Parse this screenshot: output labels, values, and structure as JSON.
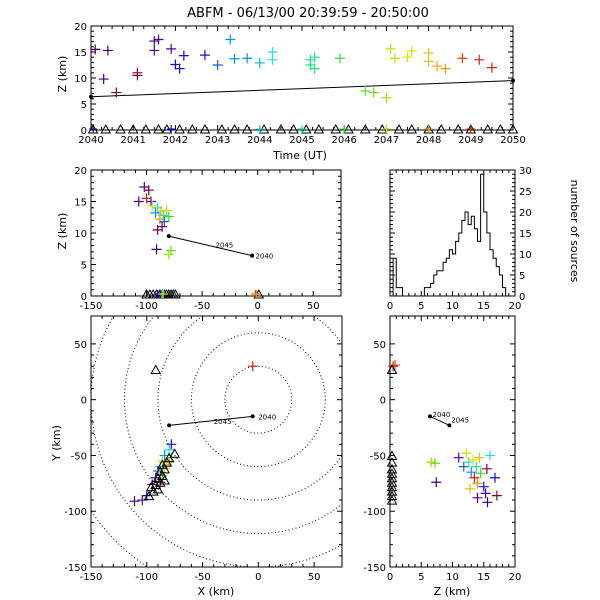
{
  "title": "ABFM - 06/13/00 20:39:59 - 20:50:00",
  "chart_data": [
    {
      "panel": "time-height",
      "type": "scatter",
      "xlabel": "Time (UT)",
      "ylabel": "Z (km)",
      "xlim": [
        2040,
        2050
      ],
      "ylim": [
        0,
        20
      ],
      "xticks": [
        2040,
        2041,
        2042,
        2043,
        2044,
        2045,
        2046,
        2047,
        2048,
        2049,
        2050
      ],
      "yticks": [
        0,
        5,
        10,
        15,
        20
      ],
      "track": [
        [
          2040,
          6.4
        ],
        [
          2050,
          9.5
        ]
      ],
      "points": [
        {
          "x": 2040.1,
          "y": 15.5,
          "c": "#400080"
        },
        {
          "x": 2040.4,
          "y": 15.3,
          "c": "#400080"
        },
        {
          "x": 2040.3,
          "y": 9.8,
          "c": "#400080"
        },
        {
          "x": 2040.6,
          "y": 7.2,
          "c": "#800040"
        },
        {
          "x": 2041.1,
          "y": 11.0,
          "c": "#800040"
        },
        {
          "x": 2041.1,
          "y": 10.5,
          "c": "#800040"
        },
        {
          "x": 2041.5,
          "y": 17.1,
          "c": "#5000a0"
        },
        {
          "x": 2041.6,
          "y": 17.4,
          "c": "#5000a0"
        },
        {
          "x": 2041.5,
          "y": 15.3,
          "c": "#5000a0"
        },
        {
          "x": 2041.9,
          "y": 15.6,
          "c": "#5000a0"
        },
        {
          "x": 2042.0,
          "y": 12.6,
          "c": "#1010e0"
        },
        {
          "x": 2042.1,
          "y": 11.8,
          "c": "#1010e0"
        },
        {
          "x": 2042.2,
          "y": 14.3,
          "c": "#1010e0"
        },
        {
          "x": 2042.7,
          "y": 14.4,
          "c": "#1010e0"
        },
        {
          "x": 2043.0,
          "y": 12.5,
          "c": "#1060e0"
        },
        {
          "x": 2043.3,
          "y": 17.4,
          "c": "#0090ff"
        },
        {
          "x": 2043.4,
          "y": 13.7,
          "c": "#0090ff"
        },
        {
          "x": 2043.7,
          "y": 13.8,
          "c": "#0090ff"
        },
        {
          "x": 2044.0,
          "y": 12.9,
          "c": "#00c0e0"
        },
        {
          "x": 2044.3,
          "y": 15.0,
          "c": "#20e0e0"
        },
        {
          "x": 2044.3,
          "y": 13.5,
          "c": "#20e0e0"
        },
        {
          "x": 2045.2,
          "y": 13.5,
          "c": "#20e0a0"
        },
        {
          "x": 2045.3,
          "y": 14.0,
          "c": "#20e0a0"
        },
        {
          "x": 2045.2,
          "y": 12.5,
          "c": "#20e080"
        },
        {
          "x": 2045.3,
          "y": 11.8,
          "c": "#20e080"
        },
        {
          "x": 2045.9,
          "y": 13.8,
          "c": "#30e040"
        },
        {
          "x": 2046.5,
          "y": 7.5,
          "c": "#60e020"
        },
        {
          "x": 2046.7,
          "y": 7.2,
          "c": "#60e020"
        },
        {
          "x": 2047.0,
          "y": 6.2,
          "c": "#a0e000"
        },
        {
          "x": 2047.1,
          "y": 15.6,
          "c": "#c0e000"
        },
        {
          "x": 2047.2,
          "y": 13.8,
          "c": "#c0e000"
        },
        {
          "x": 2047.5,
          "y": 14.0,
          "c": "#e0e000"
        },
        {
          "x": 2047.6,
          "y": 15.2,
          "c": "#e0e000"
        },
        {
          "x": 2048.0,
          "y": 13.2,
          "c": "#e0c000"
        },
        {
          "x": 2048.0,
          "y": 14.8,
          "c": "#e0c000"
        },
        {
          "x": 2048.2,
          "y": 12.3,
          "c": "#ffa000"
        },
        {
          "x": 2048.4,
          "y": 11.8,
          "c": "#ff9000"
        },
        {
          "x": 2048.8,
          "y": 13.8,
          "c": "#e04000"
        },
        {
          "x": 2049.2,
          "y": 13.5,
          "c": "#d02010"
        },
        {
          "x": 2049.5,
          "y": 12.0,
          "c": "#d02010"
        }
      ],
      "ground": [
        {
          "x": 2040.05,
          "c": "#400080"
        },
        {
          "x": 2041.9,
          "c": "#1010e0"
        },
        {
          "x": 2044.0,
          "c": "#20e0e0"
        },
        {
          "x": 2045.0,
          "c": "#20e0a0"
        },
        {
          "x": 2046.0,
          "c": "#30e040"
        },
        {
          "x": 2047.0,
          "c": "#c0e000"
        },
        {
          "x": 2048.0,
          "c": "#ff9000"
        },
        {
          "x": 2049.0,
          "c": "#d02010"
        }
      ],
      "triangles_x": [
        2040.05,
        2040.35,
        2040.7,
        2041.0,
        2041.3,
        2041.6,
        2041.8,
        2042.1,
        2042.4,
        2042.7,
        2043.1,
        2043.4,
        2043.7,
        2044.1,
        2044.5,
        2044.8,
        2045.1,
        2045.4,
        2045.8,
        2046.1,
        2046.5,
        2046.9,
        2047.3,
        2047.6,
        2048.0,
        2048.3,
        2048.7,
        2049.0,
        2049.4,
        2049.7,
        2050.0
      ]
    },
    {
      "panel": "x-height",
      "type": "scatter",
      "ylabel": "Z (km)",
      "xlim": [
        -150,
        75
      ],
      "ylim": [
        0,
        20
      ],
      "xticks": [
        -150,
        -100,
        -50,
        0,
        50
      ],
      "yticks": [
        0,
        5,
        10,
        15,
        20
      ],
      "track": [
        [
          -80,
          9.5
        ],
        [
          -5,
          6.4
        ]
      ],
      "track_labels": [
        {
          "text": "2045",
          "x": -38,
          "y": 8.2
        },
        {
          "text": "2040",
          "x": -2,
          "y": 6.4
        }
      ],
      "points": [
        {
          "x": -102,
          "y": 17.3,
          "c": "#5000a0"
        },
        {
          "x": -98,
          "y": 16.8,
          "c": "#800040"
        },
        {
          "x": -96,
          "y": 15.0,
          "c": "#1010e0"
        },
        {
          "x": -100,
          "y": 15.5,
          "c": "#d02010"
        },
        {
          "x": -107,
          "y": 15.0,
          "c": "#400080"
        },
        {
          "x": -95,
          "y": 14.3,
          "c": "#e0e000"
        },
        {
          "x": -90,
          "y": 14.0,
          "c": "#20e0e0"
        },
        {
          "x": -87,
          "y": 13.5,
          "c": "#e0c000"
        },
        {
          "x": -92,
          "y": 13.2,
          "c": "#0090ff"
        },
        {
          "x": -85,
          "y": 12.8,
          "c": "#20e0a0"
        },
        {
          "x": -82,
          "y": 13.6,
          "c": "#c0e000"
        },
        {
          "x": -88,
          "y": 12.2,
          "c": "#ff9000"
        },
        {
          "x": -84,
          "y": 11.8,
          "c": "#1060e0"
        },
        {
          "x": -80,
          "y": 12.6,
          "c": "#30e040"
        },
        {
          "x": -86,
          "y": 11.0,
          "c": "#5000a0"
        },
        {
          "x": -90,
          "y": 10.5,
          "c": "#800040"
        },
        {
          "x": -91,
          "y": 7.4,
          "c": "#400080"
        },
        {
          "x": -78,
          "y": 7.2,
          "c": "#60e020"
        },
        {
          "x": -80,
          "y": 6.6,
          "c": "#a0e000"
        }
      ],
      "ground": [
        {
          "x": -90,
          "c": "#400080"
        },
        {
          "x": -88,
          "c": "#1010e0"
        },
        {
          "x": -86,
          "c": "#20e0e0"
        },
        {
          "x": -85,
          "c": "#c0e000"
        },
        {
          "x": -2,
          "c": "#e04000"
        },
        {
          "x": -1,
          "c": "#ff9000"
        }
      ],
      "triangles_x": [
        -100,
        -97,
        -94,
        -91,
        -88,
        -86,
        -84,
        -82,
        -80,
        -78,
        -76,
        -74,
        1
      ]
    },
    {
      "panel": "height-histogram",
      "type": "histogram",
      "ylabel": "number of sources",
      "xlim": [
        0,
        20
      ],
      "ylim": [
        0,
        30
      ],
      "xticks": [
        0,
        5,
        10,
        15,
        20
      ],
      "yticks": [
        0,
        5,
        10,
        15,
        20,
        25,
        30
      ],
      "bin_width": 0.5,
      "counts": [
        0,
        9,
        2,
        2,
        0,
        0,
        0,
        0,
        0,
        0,
        0,
        2,
        2,
        3,
        5,
        6,
        6,
        8,
        9,
        11,
        10,
        13,
        15,
        18,
        20,
        17,
        19,
        16,
        13,
        29,
        20,
        15,
        11,
        9,
        7,
        5,
        2,
        0,
        0,
        0
      ]
    },
    {
      "panel": "plan-view",
      "type": "scatter",
      "xlabel": "X (km)",
      "ylabel": "Y (km)",
      "xlim": [
        -150,
        75
      ],
      "ylim": [
        -150,
        75
      ],
      "xticks": [
        -150,
        -100,
        -50,
        0,
        50
      ],
      "yticks": [
        -150,
        -100,
        -50,
        0,
        50
      ],
      "range_rings_km": [
        30,
        60,
        90,
        120,
        150,
        180
      ],
      "ring_center": [
        0,
        0
      ],
      "track": [
        [
          -80,
          -23
        ],
        [
          -5,
          -15
        ]
      ],
      "track_labels": [
        {
          "text": "2045",
          "x": -40,
          "y": -19
        },
        {
          "text": "2040",
          "x": 0,
          "y": -15
        }
      ],
      "points": [
        {
          "x": -5,
          "y": 30,
          "c": "#d02010"
        },
        {
          "x": -78,
          "y": -40,
          "c": "#1010e0"
        },
        {
          "x": -80,
          "y": -45,
          "c": "#20e0e0"
        },
        {
          "x": -84,
          "y": -50,
          "c": "#0090ff"
        },
        {
          "x": -78,
          "y": -52,
          "c": "#30e040"
        },
        {
          "x": -86,
          "y": -55,
          "c": "#e0e000"
        },
        {
          "x": -82,
          "y": -58,
          "c": "#c0e000"
        },
        {
          "x": -88,
          "y": -60,
          "c": "#20e0a0"
        },
        {
          "x": -84,
          "y": -62,
          "c": "#e0c000"
        },
        {
          "x": -80,
          "y": -56,
          "c": "#ff9000"
        },
        {
          "x": -90,
          "y": -64,
          "c": "#1060e0"
        },
        {
          "x": -86,
          "y": -68,
          "c": "#60e020"
        },
        {
          "x": -92,
          "y": -70,
          "c": "#5000a0"
        },
        {
          "x": -88,
          "y": -74,
          "c": "#800040"
        },
        {
          "x": -95,
          "y": -76,
          "c": "#400080"
        },
        {
          "x": -100,
          "y": -86,
          "c": "#1010e0"
        },
        {
          "x": -104,
          "y": -90,
          "c": "#5000a0"
        },
        {
          "x": -111,
          "y": -91,
          "c": "#400080"
        }
      ],
      "triangles": [
        [
          -92,
          27
        ],
        [
          -75,
          -48
        ],
        [
          -80,
          -52
        ],
        [
          -82,
          -56
        ],
        [
          -86,
          -58
        ],
        [
          -84,
          -62
        ],
        [
          -88,
          -64
        ],
        [
          -86,
          -68
        ],
        [
          -90,
          -70
        ],
        [
          -88,
          -74
        ],
        [
          -92,
          -76
        ],
        [
          -90,
          -80
        ],
        [
          -94,
          -82
        ],
        [
          -96,
          -78
        ],
        [
          -84,
          -72
        ],
        [
          -98,
          -86
        ]
      ]
    },
    {
      "panel": "height-y",
      "type": "scatter",
      "xlabel": "Z (km)",
      "xlim": [
        0,
        20
      ],
      "ylim": [
        -150,
        75
      ],
      "xticks": [
        0,
        5,
        10,
        15,
        20
      ],
      "yticks": [
        -150,
        -100,
        -50,
        0,
        50
      ],
      "track": [
        [
          6.4,
          -15
        ],
        [
          9.5,
          -23
        ]
      ],
      "track_labels": [
        {
          "text": "2040",
          "x": 6.8,
          "y": -13
        },
        {
          "text": "2045",
          "x": 9.8,
          "y": -18
        }
      ],
      "points": [
        {
          "x": 0.5,
          "y": 30,
          "c": "#d02010"
        },
        {
          "x": 0.8,
          "y": 31,
          "c": "#e04000"
        },
        {
          "x": 7.2,
          "y": -57,
          "c": "#60e020"
        },
        {
          "x": 7.4,
          "y": -74,
          "c": "#400080"
        },
        {
          "x": 6.6,
          "y": -56,
          "c": "#a0e000"
        },
        {
          "x": 11.0,
          "y": -52,
          "c": "#5000a0"
        },
        {
          "x": 11.8,
          "y": -60,
          "c": "#1060e0"
        },
        {
          "x": 12.2,
          "y": -48,
          "c": "#c0e000"
        },
        {
          "x": 12.6,
          "y": -56,
          "c": "#20e0e0"
        },
        {
          "x": 13.0,
          "y": -65,
          "c": "#0090ff"
        },
        {
          "x": 13.3,
          "y": -54,
          "c": "#e0e000"
        },
        {
          "x": 13.5,
          "y": -70,
          "c": "#d02010"
        },
        {
          "x": 13.8,
          "y": -60,
          "c": "#20e0a0"
        },
        {
          "x": 14.0,
          "y": -75,
          "c": "#ff9000"
        },
        {
          "x": 14.3,
          "y": -52,
          "c": "#e0c000"
        },
        {
          "x": 14.5,
          "y": -66,
          "c": "#30e040"
        },
        {
          "x": 15.0,
          "y": -78,
          "c": "#1010e0"
        },
        {
          "x": 15.5,
          "y": -62,
          "c": "#800040"
        },
        {
          "x": 15.3,
          "y": -84,
          "c": "#5000a0"
        },
        {
          "x": 16.8,
          "y": -70,
          "c": "#1010e0"
        },
        {
          "x": 17.1,
          "y": -86,
          "c": "#800040"
        },
        {
          "x": 15.6,
          "y": -92,
          "c": "#400080"
        },
        {
          "x": 16.0,
          "y": -50,
          "c": "#20e0e0"
        },
        {
          "x": 12.8,
          "y": -80,
          "c": "#e0c000"
        },
        {
          "x": 14.0,
          "y": -88,
          "c": "#5000a0"
        }
      ],
      "triangles_y": [
        27,
        -50,
        -56,
        -62,
        -66,
        -70,
        -74,
        -78,
        -82,
        -86,
        -90
      ]
    }
  ]
}
